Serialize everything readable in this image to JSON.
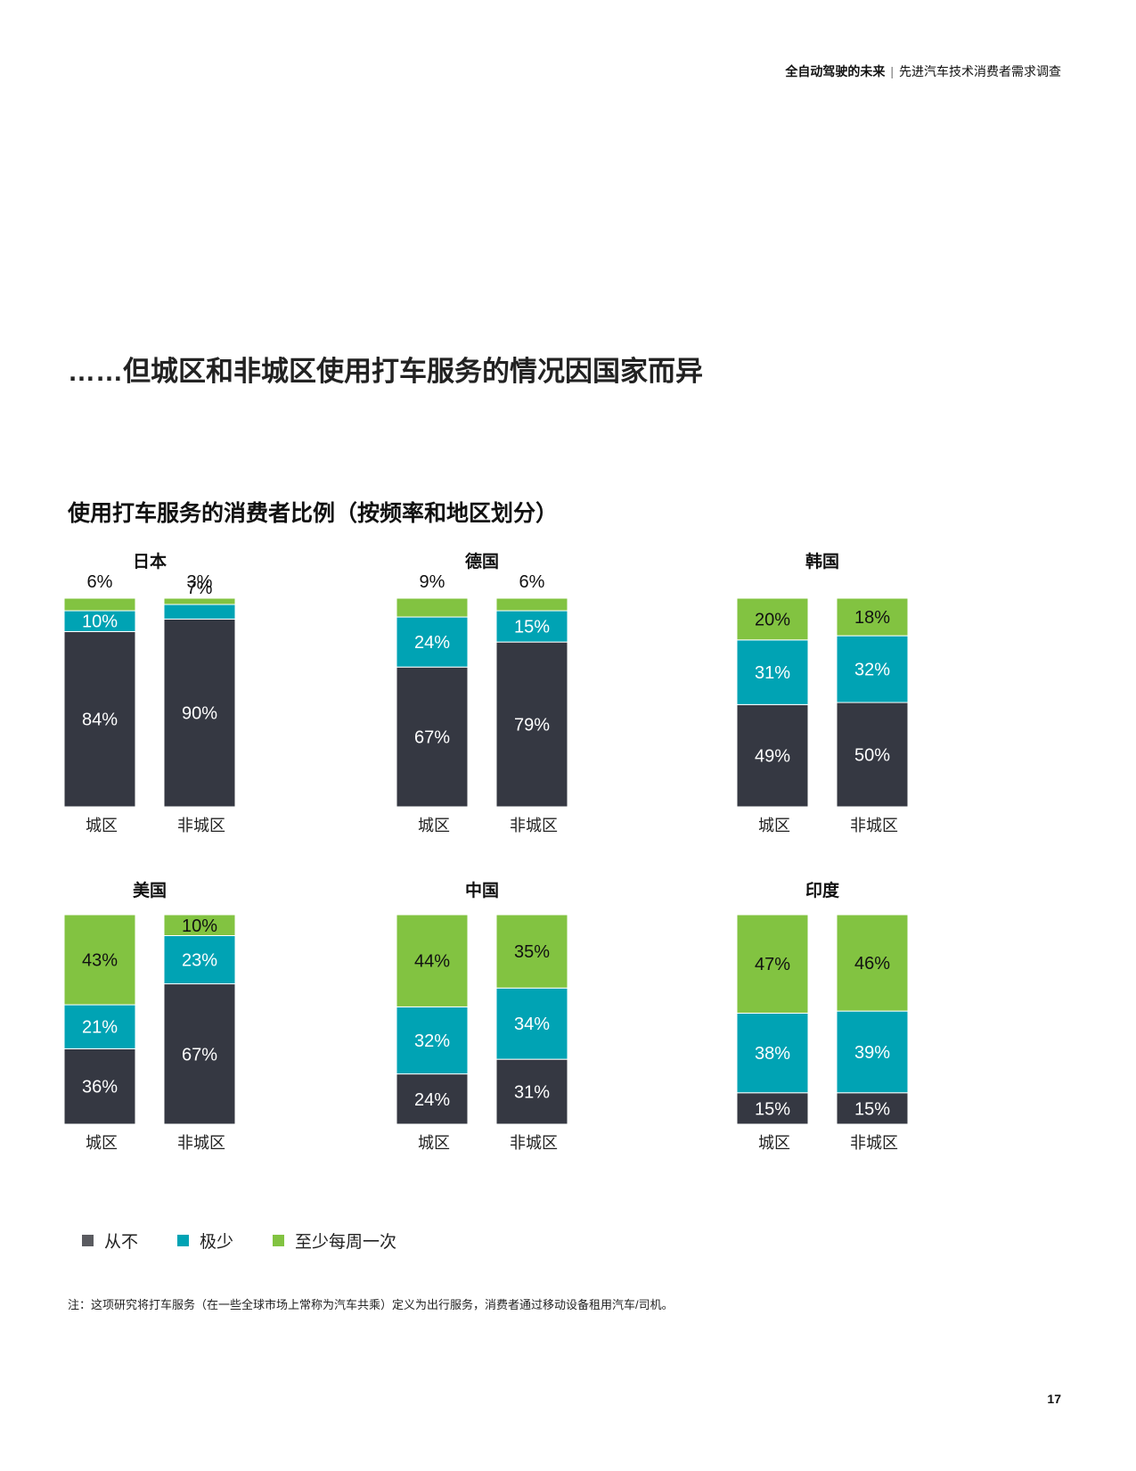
{
  "header": {
    "report_title": "全自动驾驶的未来",
    "separator": "|",
    "report_subtitle": "先进汽车技术消费者需求调查"
  },
  "headline": "……但城区和非城区使用打车服务的情况因国家而异",
  "chart_title": "使用打车服务的消费者比例（按频率和地区划分）",
  "colors": {
    "never": "#353842",
    "rarely": "#00a3b4",
    "weekly": "#82c341"
  },
  "chart_data": {
    "type": "bar",
    "stacked": true,
    "unit": "%",
    "legend_position": "bottom-left",
    "series_names": [
      "从不",
      "极少",
      "至少每周一次"
    ],
    "panels": [
      {
        "country": "日本",
        "categories": [
          "城区",
          "非城区"
        ],
        "series": [
          {
            "name": "从不",
            "values": [
              84,
              90
            ]
          },
          {
            "name": "极少",
            "values": [
              10,
              7
            ]
          },
          {
            "name": "至少每周一次",
            "values": [
              6,
              3
            ]
          }
        ]
      },
      {
        "country": "德国",
        "categories": [
          "城区",
          "非城区"
        ],
        "series": [
          {
            "name": "从不",
            "values": [
              67,
              79
            ]
          },
          {
            "name": "极少",
            "values": [
              24,
              15
            ]
          },
          {
            "name": "至少每周一次",
            "values": [
              9,
              6
            ]
          }
        ]
      },
      {
        "country": "韩国",
        "categories": [
          "城区",
          "非城区"
        ],
        "series": [
          {
            "name": "从不",
            "values": [
              49,
              50
            ]
          },
          {
            "name": "极少",
            "values": [
              31,
              32
            ]
          },
          {
            "name": "至少每周一次",
            "values": [
              20,
              18
            ]
          }
        ]
      },
      {
        "country": "美国",
        "categories": [
          "城区",
          "非城区"
        ],
        "series": [
          {
            "name": "从不",
            "values": [
              36,
              67
            ]
          },
          {
            "name": "极少",
            "values": [
              21,
              23
            ]
          },
          {
            "name": "至少每周一次",
            "values": [
              43,
              10
            ]
          }
        ]
      },
      {
        "country": "中国",
        "categories": [
          "城区",
          "非城区"
        ],
        "series": [
          {
            "name": "从不",
            "values": [
              24,
              31
            ]
          },
          {
            "name": "极少",
            "values": [
              32,
              34
            ]
          },
          {
            "name": "至少每周一次",
            "values": [
              44,
              35
            ]
          }
        ]
      },
      {
        "country": "印度",
        "categories": [
          "城区",
          "非城区"
        ],
        "series": [
          {
            "name": "从不",
            "values": [
              15,
              15
            ]
          },
          {
            "name": "极少",
            "values": [
              38,
              39
            ]
          },
          {
            "name": "至少每周一次",
            "values": [
              47,
              46
            ]
          }
        ]
      }
    ]
  },
  "legend": [
    {
      "label": "从不",
      "color": "#5a5b60"
    },
    {
      "label": "极少",
      "color": "#00a3b4"
    },
    {
      "label": "至少每周一次",
      "color": "#82c341"
    }
  ],
  "note": "注：这项研究将打车服务（在一些全球市场上常称为汽车共乘）定义为出行服务，消费者通过移动设备租用汽车/司机。",
  "page_number": "17"
}
